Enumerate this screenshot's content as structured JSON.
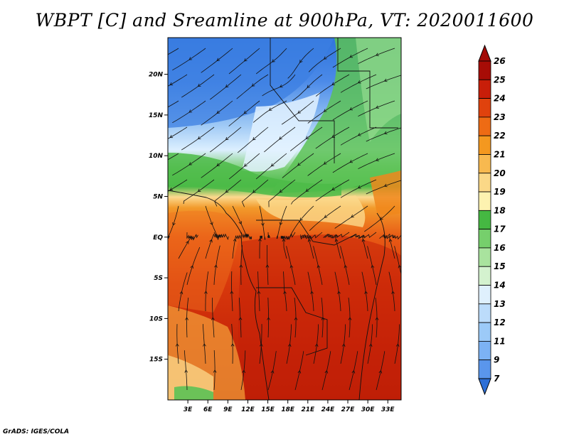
{
  "title": "WBPT [C] and Sreamline at 900hPa, VT: 2020011600",
  "credit": "GrADS: IGES/COLA",
  "map": {
    "lon_range": [
      0,
      35
    ],
    "lat_range": [
      -20,
      24.5
    ],
    "lon_ticks": [
      "3E",
      "6E",
      "9E",
      "12E",
      "15E",
      "18E",
      "21E",
      "24E",
      "27E",
      "30E",
      "33E"
    ],
    "lon_tick_values": [
      3,
      6,
      9,
      12,
      15,
      18,
      21,
      24,
      27,
      30,
      33
    ],
    "lat_ticks": [
      "20N",
      "15N",
      "10N",
      "5N",
      "EQ",
      "5S",
      "10S",
      "15S"
    ],
    "lat_tick_values": [
      20,
      15,
      10,
      5,
      0,
      -5,
      -10,
      -15
    ],
    "field": "Wet-bulb potential temperature [C] with streamlines at 900hPa"
  },
  "colorbar": {
    "labels": [
      "7",
      "9",
      "11",
      "12",
      "13",
      "14",
      "15",
      "16",
      "17",
      "18",
      "19",
      "20",
      "21",
      "22",
      "23",
      "24",
      "25",
      "26"
    ],
    "colors": [
      "#3a7be0",
      "#5a96ec",
      "#7cb2f4",
      "#9ccaf8",
      "#bcdcfb",
      "#dff0fd",
      "#d4f2cf",
      "#a9e39e",
      "#76cf6c",
      "#45b842",
      "#fdf2b0",
      "#fbd887",
      "#f8b94f",
      "#f4981f",
      "#ee6b14",
      "#e0420d",
      "#c81e09",
      "#a70c06"
    ],
    "tip_low": "#2d6fd6",
    "tip_high": "#a30a06"
  }
}
